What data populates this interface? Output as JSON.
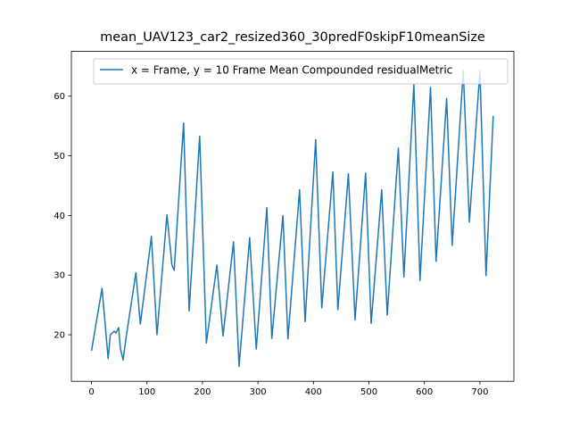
{
  "chart_data": {
    "type": "line",
    "title": "mean_UAV123_car2_resized360_30predF0skipF10meanSize",
    "x": [
      0,
      19,
      30,
      34,
      41,
      44,
      49,
      52,
      57,
      62,
      80,
      88,
      108,
      118,
      136,
      145,
      149,
      166,
      176,
      195,
      207,
      226,
      237,
      256,
      266,
      285,
      297,
      316,
      325,
      345,
      354,
      375,
      385,
      404,
      415,
      435,
      444,
      463,
      475,
      494,
      504,
      523,
      533,
      553,
      563,
      581,
      592,
      611,
      621,
      640,
      650,
      670,
      681,
      700,
      711,
      724
    ],
    "series": [
      {
        "name": "x = Frame, y = 10 Frame Mean Compounded residualMetric",
        "color": "#1f77b4",
        "values": [
          17.3,
          27.8,
          16,
          20,
          20.6,
          20.3,
          21.2,
          17.7,
          15.8,
          19.3,
          30.4,
          21.8,
          36.5,
          20,
          40.1,
          31.7,
          30.8,
          55.5,
          24,
          53.3,
          18.6,
          31.7,
          19.8,
          35.6,
          14.7,
          36.3,
          17.6,
          41.3,
          19.4,
          40,
          19.3,
          44.3,
          22.2,
          52.7,
          24.5,
          47.3,
          24.2,
          47,
          22.5,
          47.1,
          21.9,
          44.3,
          23.3,
          51.3,
          29.7,
          62,
          29.1,
          61.5,
          32.3,
          59.6,
          35,
          64.3,
          38.9,
          64.3,
          29.9,
          56.7
        ]
      }
    ],
    "xlim": [
      -36.25,
      761.25
    ],
    "ylim": [
      12.2,
      67.5
    ],
    "xticks": [
      0,
      100,
      200,
      300,
      400,
      500,
      600,
      700
    ],
    "yticks": [
      20,
      30,
      40,
      50,
      60
    ],
    "grid": false,
    "legend": "upper right"
  }
}
